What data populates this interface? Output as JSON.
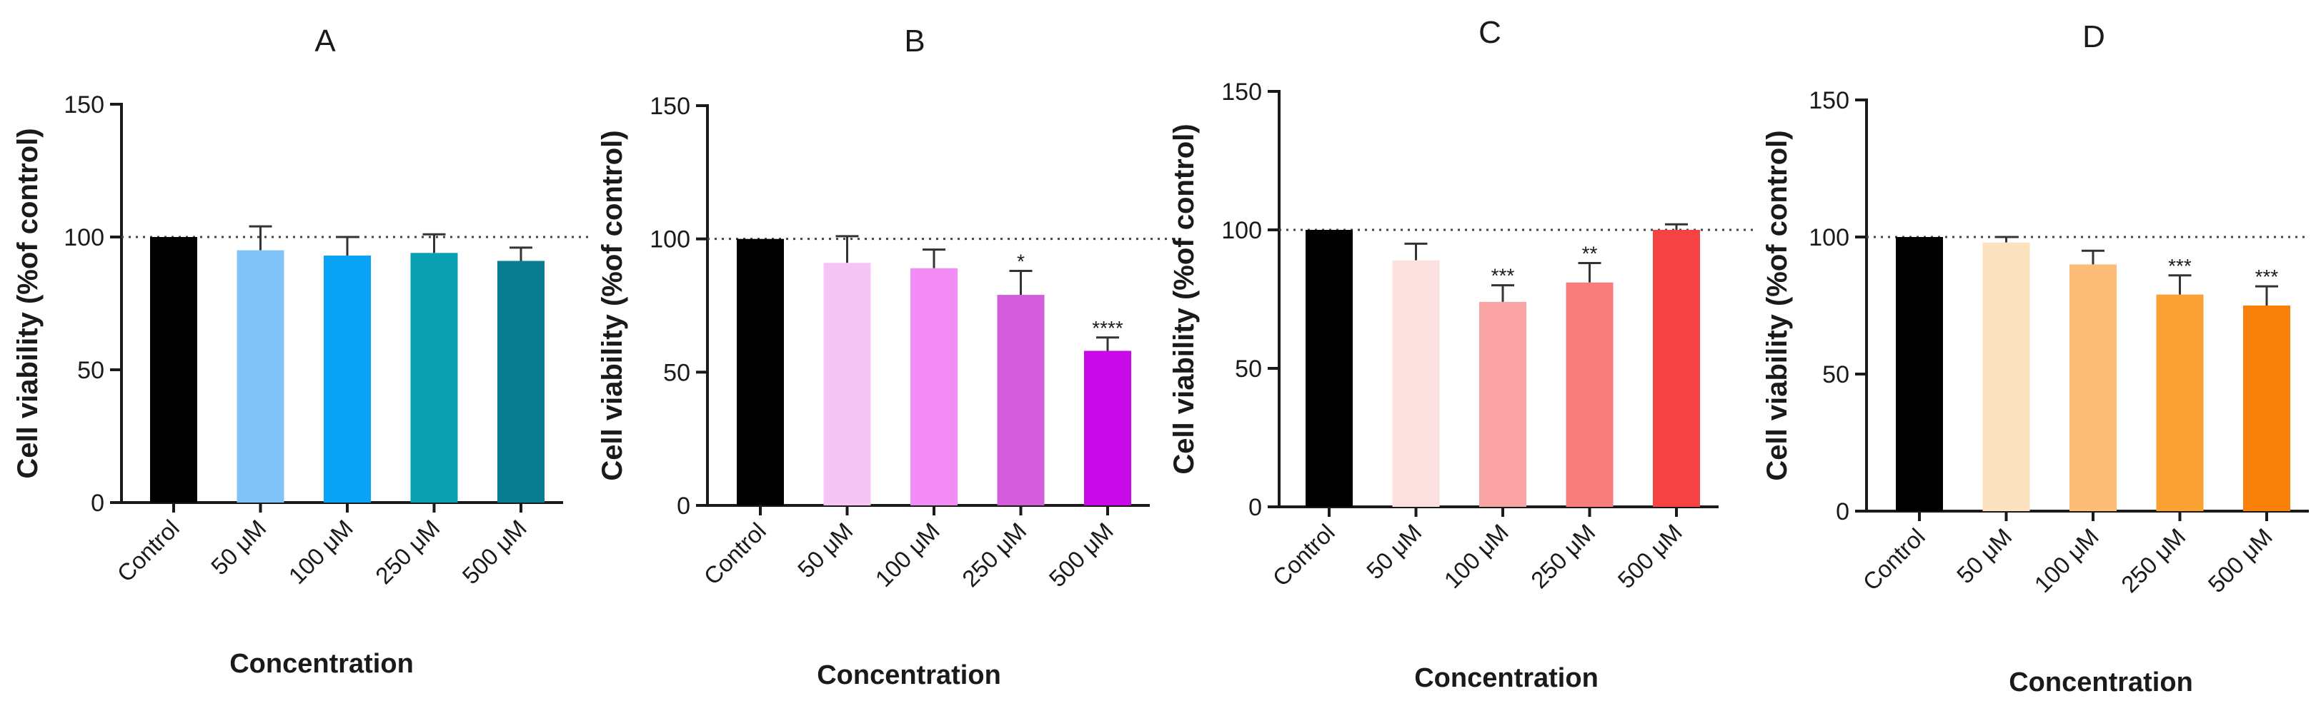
{
  "figure": {
    "chart_data": [
      {
        "type": "bar",
        "panel": "A",
        "title": "A",
        "xlabel": "Concentration",
        "ylabel": "Cell viability (%of control)",
        "ylim": [
          0,
          150
        ],
        "yticks": [
          "0",
          "50",
          "100",
          "150"
        ],
        "reference_line": 100,
        "categories": [
          "Control",
          "50 μM",
          "100 μM",
          "250 μM",
          "500 μM"
        ],
        "values": [
          100,
          95,
          93,
          94,
          91
        ],
        "errors": [
          0,
          9,
          7,
          7,
          5
        ],
        "colors": [
          "#000000",
          "#80c4f7",
          "#09a3f5",
          "#0a9fb1",
          "#0a7d93"
        ],
        "significance": [
          "",
          "",
          "",
          "",
          ""
        ]
      },
      {
        "type": "bar",
        "panel": "B",
        "title": "B",
        "xlabel": "Concentration",
        "ylabel": "Cell viability (%of control)",
        "ylim": [
          0,
          150
        ],
        "yticks": [
          "0",
          "50",
          "100",
          "150"
        ],
        "reference_line": 100,
        "categories": [
          "Control",
          "50 μM",
          "100 μM",
          "250 μM",
          "500 μM"
        ],
        "values": [
          100,
          91,
          89,
          79,
          58
        ],
        "errors": [
          0,
          10,
          7,
          9,
          5
        ],
        "colors": [
          "#000000",
          "#f5c6f5",
          "#f38df5",
          "#d35ddb",
          "#c80ae9"
        ],
        "significance": [
          "",
          "",
          "",
          "*",
          "****"
        ]
      },
      {
        "type": "bar",
        "panel": "C",
        "title": "C",
        "xlabel": "Concentration",
        "ylabel": "Cell viability (%of control)",
        "ylim": [
          0,
          150
        ],
        "yticks": [
          "0",
          "50",
          "100",
          "150"
        ],
        "reference_line": 100,
        "categories": [
          "Control",
          "50 μM",
          "100 μM",
          "250 μM",
          "500 μM"
        ],
        "values": [
          100,
          89,
          74,
          81,
          100
        ],
        "errors": [
          0,
          6,
          6,
          7,
          2
        ],
        "colors": [
          "#000000",
          "#fde0e0",
          "#f9a3a5",
          "#f77c7c",
          "#f54242"
        ],
        "significance": [
          "",
          "",
          "***",
          "**",
          ""
        ]
      },
      {
        "type": "bar",
        "panel": "D",
        "title": "D",
        "xlabel": "Concentration",
        "ylabel": "Cell viability (%of control)",
        "ylim": [
          0,
          150
        ],
        "yticks": [
          "0",
          "50",
          "100",
          "150"
        ],
        "reference_line": 100,
        "categories": [
          "Control",
          "50 μM",
          "100 μM",
          "250 μM",
          "500 μM"
        ],
        "values": [
          100,
          98,
          90,
          79,
          75
        ],
        "errors": [
          0,
          2,
          5,
          7,
          7
        ],
        "colors": [
          "#000000",
          "#fde2bf",
          "#fcbd78",
          "#f9a132",
          "#f77f0a"
        ],
        "significance": [
          "",
          "",
          "",
          "***",
          "***"
        ]
      }
    ]
  }
}
